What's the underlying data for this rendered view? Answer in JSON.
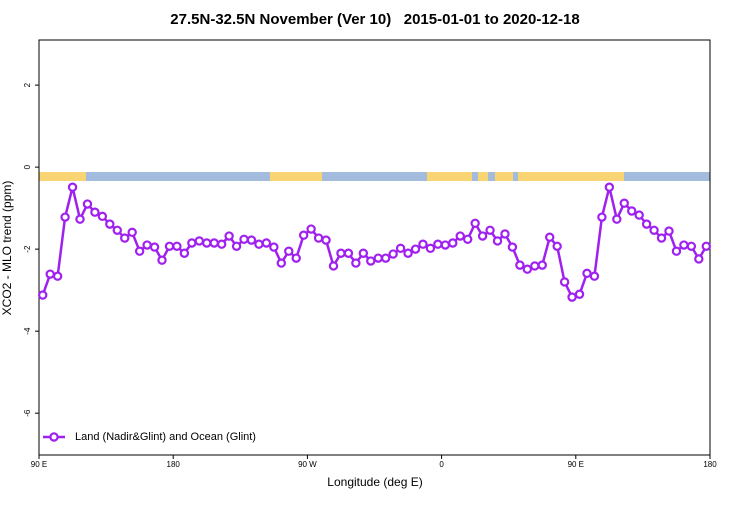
{
  "chart_data": {
    "type": "line",
    "title": "27.5N-32.5N November (Ver 10)   2015-01-01 to 2020-12-18",
    "xlabel": "Longitude (deg E)",
    "ylabel": "XCO2 - MLO trend (ppm)",
    "x": [
      92.5,
      97.5,
      102.5,
      107.5,
      112.5,
      117.5,
      122.5,
      127.5,
      132.5,
      137.5,
      142.5,
      147.5,
      152.5,
      157.5,
      162.5,
      167.5,
      172.5,
      177.5,
      182.5,
      187.5,
      192.5,
      197.5,
      202.5,
      207.5,
      212.5,
      217.5,
      222.5,
      227.5,
      232.5,
      237.5,
      242.5,
      247.5,
      252.5,
      257.5,
      262.5,
      267.5,
      272.5,
      277.5,
      282.5,
      287.5,
      292.5,
      297.5,
      302.5,
      307.5,
      312.5,
      317.5,
      322.5,
      327.5,
      332.5,
      337.5,
      342.5,
      347.5,
      352.5,
      357.5,
      362.5,
      367.5,
      372.5,
      377.5,
      382.5,
      387.5,
      392.5,
      397.5,
      402.5,
      407.5,
      412.5,
      417.5,
      422.5,
      427.5,
      432.5,
      437.5,
      442.5,
      447.5,
      452.5,
      457.5,
      462.5,
      467.5,
      472.5,
      477.5,
      482.5,
      487.5,
      492.5,
      497.5,
      502.5,
      507.5,
      512.5,
      517.5,
      522.5,
      527.5,
      532.5,
      537.5
    ],
    "series": [
      {
        "name": "Land (Nadir&Glint) and Ocean (Glint)",
        "color": "#a020f0",
        "values": [
          -3.12,
          -2.61,
          -2.66,
          -1.22,
          -0.49,
          -1.27,
          -0.9,
          -1.1,
          -1.2,
          -1.39,
          -1.54,
          -1.73,
          -1.59,
          -2.05,
          -1.9,
          -1.95,
          -2.27,
          -1.93,
          -1.93,
          -2.1,
          -1.85,
          -1.8,
          -1.85,
          -1.85,
          -1.88,
          -1.68,
          -1.93,
          -1.76,
          -1.78,
          -1.88,
          -1.85,
          -1.95,
          -2.34,
          -2.05,
          -2.22,
          -1.66,
          -1.51,
          -1.73,
          -1.78,
          -2.41,
          -2.1,
          -2.1,
          -2.34,
          -2.1,
          -2.29,
          -2.22,
          -2.22,
          -2.12,
          -1.98,
          -2.1,
          -2.0,
          -1.88,
          -1.98,
          -1.88,
          -1.9,
          -1.85,
          -1.68,
          -1.76,
          -1.37,
          -1.68,
          -1.54,
          -1.8,
          -1.63,
          -1.95,
          -2.39,
          -2.49,
          -2.41,
          -2.39,
          -1.71,
          -1.93,
          -2.8,
          -3.17,
          -3.1,
          -2.59,
          -2.66,
          -1.22,
          -0.49,
          -1.27,
          -0.88,
          -1.07,
          -1.17,
          -1.39,
          -1.54,
          -1.73,
          -1.56,
          -2.05,
          -1.9,
          -1.93,
          -2.24,
          -1.93
        ]
      }
    ],
    "xlim": [
      90,
      540
    ],
    "xticks": [
      {
        "value": 90,
        "label": "90 E"
      },
      180,
      {
        "value": 270,
        "label": "90 W"
      },
      {
        "value": 360,
        "label": "0"
      },
      {
        "value": 450,
        "label": "90 E"
      },
      {
        "value": 540,
        "label": "180"
      }
    ],
    "ylim": [
      -7.02,
      3.1
    ],
    "yticks": [
      -6,
      -4,
      -2,
      0,
      2
    ],
    "legend": "bottom-left"
  }
}
